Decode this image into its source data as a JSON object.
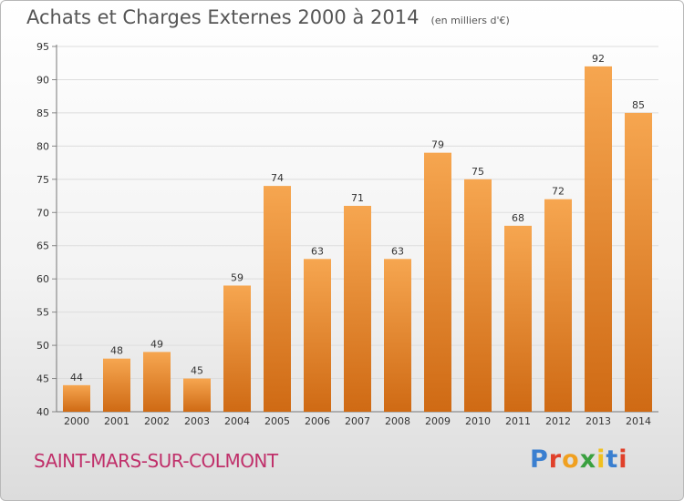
{
  "title": "Achats et Charges Externes 2000 à 2014",
  "subtitle": "(en milliers d'€)",
  "commune": "SAINT-MARS-SUR-COLMONT",
  "logo": {
    "letters": [
      "P",
      "r",
      "o",
      "x",
      "i",
      "t",
      "i"
    ],
    "colors": [
      "#3a7fd0",
      "#e0402a",
      "#f0a020",
      "#3aa040",
      "#f0c020",
      "#3a7fd0",
      "#e0402a"
    ]
  },
  "colors": {
    "bar_top": "#f6a650",
    "bar_bottom": "#cf6a14",
    "title": "#555555",
    "commune": "#c0306a"
  },
  "chart_data": {
    "type": "bar",
    "categories": [
      "2000",
      "2001",
      "2002",
      "2003",
      "2004",
      "2005",
      "2006",
      "2007",
      "2008",
      "2009",
      "2010",
      "2011",
      "2012",
      "2013",
      "2014"
    ],
    "values": [
      44,
      48,
      49,
      45,
      59,
      74,
      63,
      71,
      63,
      79,
      75,
      68,
      72,
      92,
      85
    ],
    "ylim": [
      40,
      95
    ],
    "yticks": [
      40,
      45,
      50,
      55,
      60,
      65,
      70,
      75,
      80,
      85,
      90,
      95
    ],
    "grid": true,
    "xlabel": "",
    "ylabel": ""
  }
}
